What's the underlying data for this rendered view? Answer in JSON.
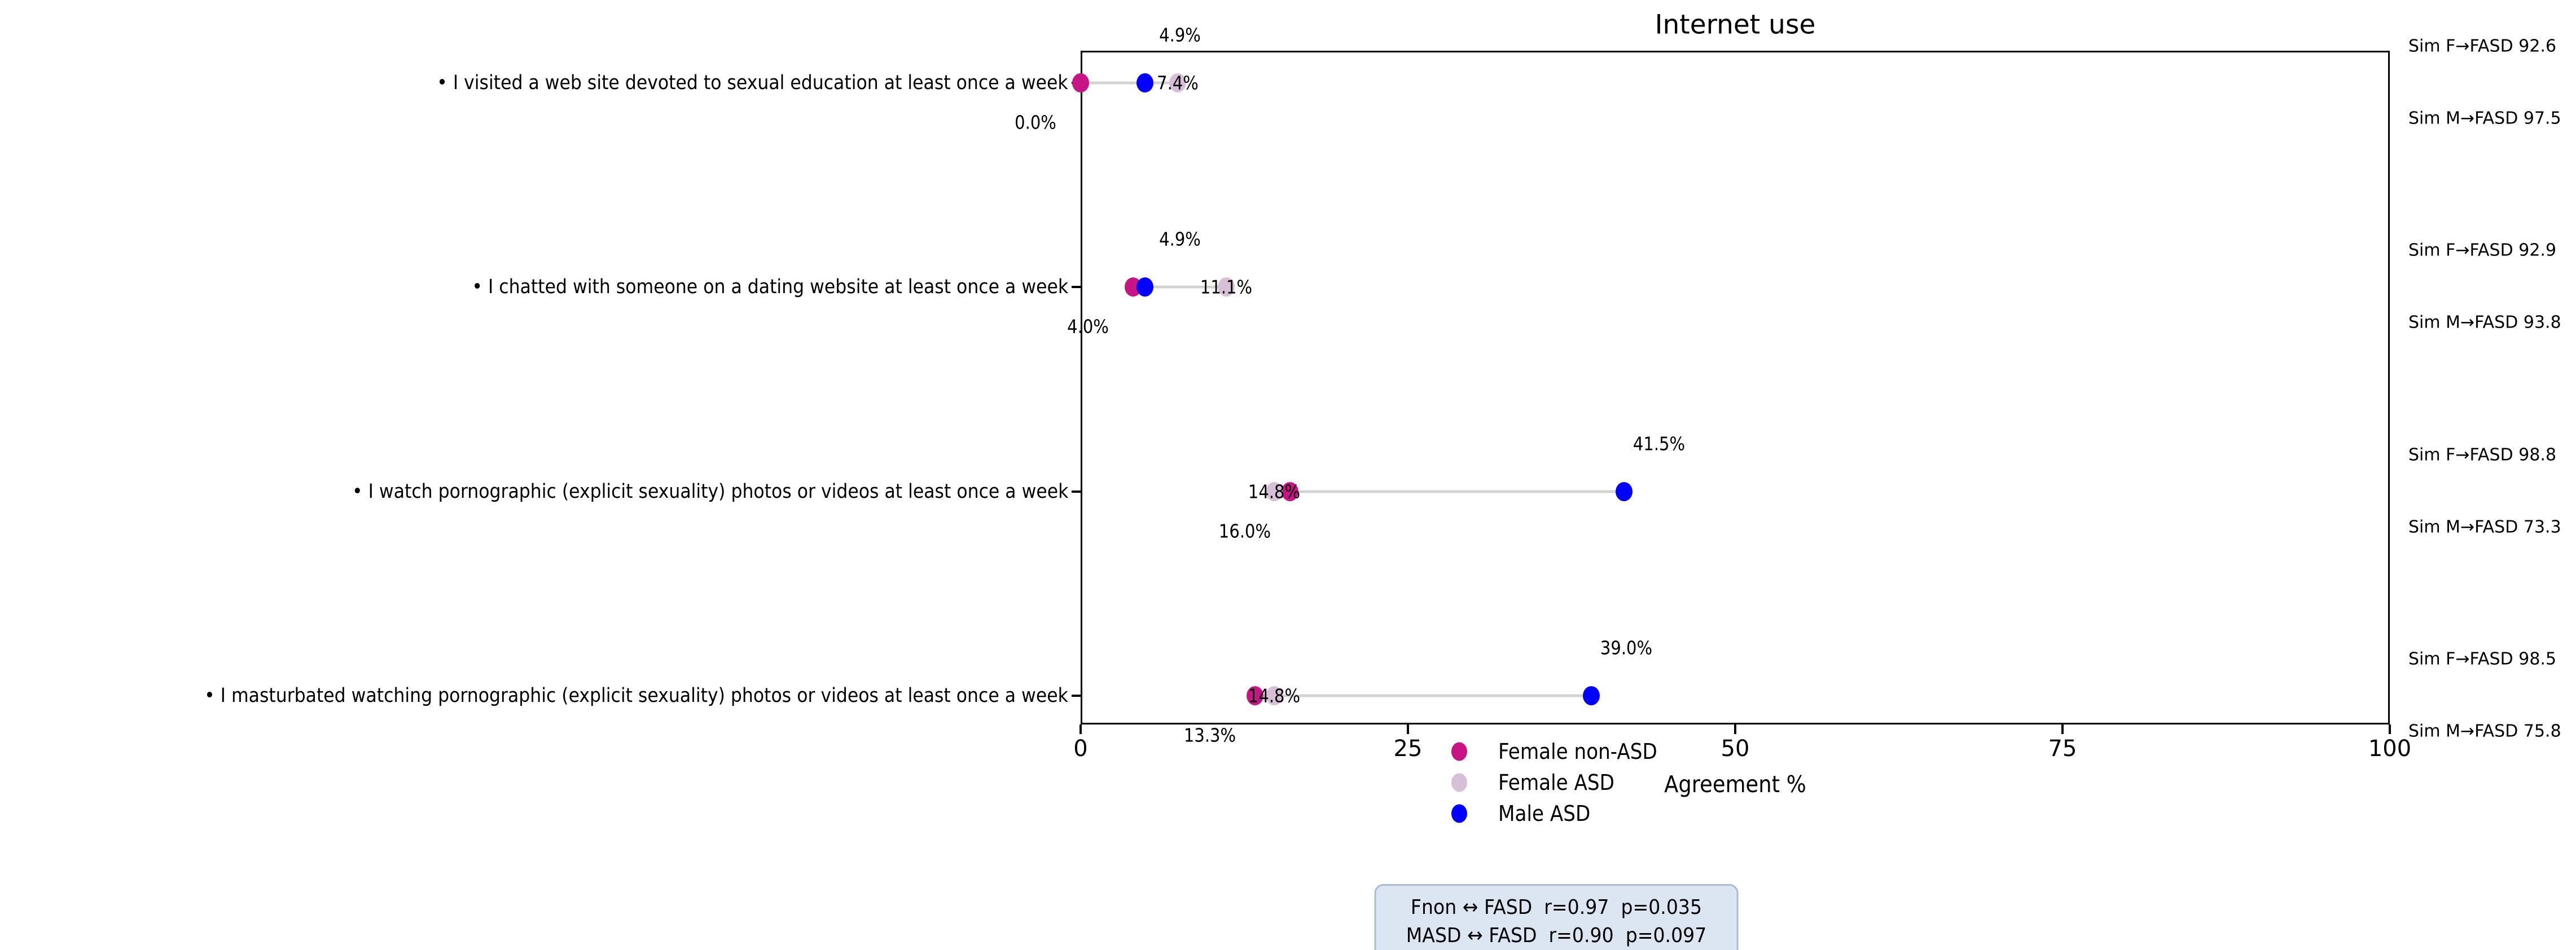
{
  "title": "Internet use",
  "axis": {
    "xlabel": "Agreement %",
    "xlim": [
      0,
      100
    ],
    "xticks": [
      0,
      25,
      50,
      75,
      100
    ],
    "xtick_labels": [
      "0",
      "25",
      "50",
      "75",
      "100"
    ]
  },
  "legend": {
    "items": [
      {
        "label": "Female non-ASD",
        "color": "#c71585"
      },
      {
        "label": "Female ASD",
        "color": "#d8bfd8"
      },
      {
        "label": "Male ASD",
        "color": "#0000ff"
      }
    ]
  },
  "stats_box": {
    "line1": "Fnon ↔ FASD  r=0.97  p=0.035",
    "line2": "MASD ↔ FASD  r=0.90  p=0.097"
  },
  "colors": {
    "female_non_asd": "#c71585",
    "female_asd": "#d8bfd8",
    "male_asd": "#0000ff",
    "connector": "#d3d3d3",
    "stats_box_bg": "#dbe6f2",
    "stats_box_border": "#a9bdd1"
  },
  "chart_data": {
    "type": "scatter",
    "subtype": "dumbbell-dot-plot",
    "title": "Internet use",
    "xlabel": "Agreement %",
    "xlim": [
      0,
      100
    ],
    "xticks": [
      0,
      25,
      50,
      75,
      100
    ],
    "grid": false,
    "legend_position": "below-axis-left-of-center",
    "categories": [
      "• I visited a web site devoted to sexual education at least once a week",
      "• I chatted with someone on a dating website at least once a week",
      "• I watch pornographic (explicit sexuality) photos or videos at least once a week",
      "• I masturbated watching pornographic (explicit sexuality) photos or videos at least once a week"
    ],
    "series": [
      {
        "name": "Female non-ASD",
        "color": "#c71585",
        "values": [
          0.0,
          4.0,
          16.0,
          13.3
        ]
      },
      {
        "name": "Female ASD",
        "color": "#d8bfd8",
        "values": [
          7.4,
          11.1,
          14.8,
          14.8
        ]
      },
      {
        "name": "Male ASD",
        "color": "#0000ff",
        "values": [
          4.9,
          4.9,
          41.5,
          39.0
        ]
      }
    ],
    "value_labels": {
      "female_non_asd": [
        "0.0%",
        "4.0%",
        "16.0%",
        "13.3%"
      ],
      "female_asd": [
        "7.4%",
        "11.1%",
        "14.8%",
        "14.8%"
      ],
      "male_asd": [
        "4.9%",
        "4.9%",
        "41.5%",
        "39.0%"
      ]
    },
    "sim_annotations": [
      {
        "f": "Sim F→FASD 92.6",
        "m": "Sim M→FASD 97.5"
      },
      {
        "f": "Sim F→FASD 92.9",
        "m": "Sim M→FASD 93.8"
      },
      {
        "f": "Sim F→FASD 98.8",
        "m": "Sim M→FASD 73.3"
      },
      {
        "f": "Sim F→FASD 98.5",
        "m": "Sim M→FASD 75.8"
      }
    ],
    "stats_annotation": [
      "Fnon ↔ FASD  r=0.97  p=0.035",
      "MASD ↔ FASD  r=0.90  p=0.097"
    ]
  }
}
